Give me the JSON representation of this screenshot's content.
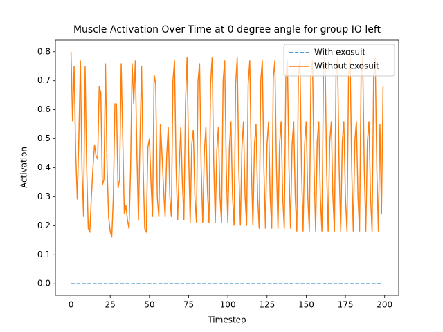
{
  "chart_data": {
    "type": "line",
    "title": "Muscle Activation Over Time at 0 degree angle for group IO left",
    "x_label": "Timestep",
    "y_label": "Activation",
    "x": [
      0,
      1,
      2,
      3,
      4,
      5,
      6,
      7,
      8,
      9,
      10,
      11,
      12,
      13,
      14,
      15,
      16,
      17,
      18,
      19,
      20,
      21,
      22,
      23,
      24,
      25,
      26,
      27,
      28,
      29,
      30,
      31,
      32,
      33,
      34,
      35,
      36,
      37,
      38,
      39,
      40,
      41,
      42,
      43,
      44,
      45,
      46,
      47,
      48,
      49,
      50,
      51,
      52,
      53,
      54,
      55,
      56,
      57,
      58,
      59,
      60,
      61,
      62,
      63,
      64,
      65,
      66,
      67,
      68,
      69,
      70,
      71,
      72,
      73,
      74,
      75,
      76,
      77,
      78,
      79,
      80,
      81,
      82,
      83,
      84,
      85,
      86,
      87,
      88,
      89,
      90,
      91,
      92,
      93,
      94,
      95,
      96,
      97,
      98,
      99,
      100,
      101,
      102,
      103,
      104,
      105,
      106,
      107,
      108,
      109,
      110,
      111,
      112,
      113,
      114,
      115,
      116,
      117,
      118,
      119,
      120,
      121,
      122,
      123,
      124,
      125,
      126,
      127,
      128,
      129,
      130,
      131,
      132,
      133,
      134,
      135,
      136,
      137,
      138,
      139,
      140,
      141,
      142,
      143,
      144,
      145,
      146,
      147,
      148,
      149,
      150,
      151,
      152,
      153,
      154,
      155,
      156,
      157,
      158,
      159,
      160,
      161,
      162,
      163,
      164,
      165,
      166,
      167,
      168,
      169,
      170,
      171,
      172,
      173,
      174,
      175,
      176,
      177,
      178,
      179,
      180,
      181,
      182,
      183,
      184,
      185,
      186,
      187,
      188,
      189,
      190,
      191,
      192,
      193,
      194,
      195,
      196,
      197,
      198,
      199
    ],
    "series": [
      {
        "name": "With exosuit",
        "color": "#1f77b4",
        "linestyle": "dashed",
        "values": [
          0,
          0,
          0,
          0,
          0,
          0,
          0,
          0,
          0,
          0,
          0,
          0,
          0,
          0,
          0,
          0,
          0,
          0,
          0,
          0,
          0,
          0,
          0,
          0,
          0,
          0,
          0,
          0,
          0,
          0,
          0,
          0,
          0,
          0,
          0,
          0,
          0,
          0,
          0,
          0,
          0,
          0,
          0,
          0,
          0,
          0,
          0,
          0,
          0,
          0,
          0,
          0,
          0,
          0,
          0,
          0,
          0,
          0,
          0,
          0,
          0,
          0,
          0,
          0,
          0,
          0,
          0,
          0,
          0,
          0,
          0,
          0,
          0,
          0,
          0,
          0,
          0,
          0,
          0,
          0,
          0,
          0,
          0,
          0,
          0,
          0,
          0,
          0,
          0,
          0,
          0,
          0,
          0,
          0,
          0,
          0,
          0,
          0,
          0,
          0,
          0,
          0,
          0,
          0,
          0,
          0,
          0,
          0,
          0,
          0,
          0,
          0,
          0,
          0,
          0,
          0,
          0,
          0,
          0,
          0,
          0,
          0,
          0,
          0,
          0,
          0,
          0,
          0,
          0,
          0,
          0,
          0,
          0,
          0,
          0,
          0,
          0,
          0,
          0,
          0,
          0,
          0,
          0,
          0,
          0,
          0,
          0,
          0,
          0,
          0,
          0,
          0,
          0,
          0,
          0,
          0,
          0,
          0,
          0,
          0,
          0,
          0,
          0,
          0,
          0,
          0,
          0,
          0,
          0,
          0,
          0,
          0,
          0,
          0,
          0,
          0,
          0,
          0,
          0,
          0,
          0,
          0,
          0,
          0,
          0,
          0,
          0,
          0,
          0,
          0,
          0,
          0,
          0,
          0,
          0,
          0,
          0,
          0,
          0,
          0
        ]
      },
      {
        "name": "Without exosuit",
        "color": "#ff7f0e",
        "linestyle": "solid",
        "values": [
          0.8,
          0.56,
          0.75,
          0.45,
          0.29,
          0.5,
          0.77,
          0.4,
          0.23,
          0.75,
          0.4,
          0.19,
          0.18,
          0.3,
          0.4,
          0.48,
          0.44,
          0.43,
          0.68,
          0.66,
          0.34,
          0.36,
          0.76,
          0.4,
          0.23,
          0.18,
          0.16,
          0.3,
          0.62,
          0.62,
          0.33,
          0.36,
          0.76,
          0.5,
          0.24,
          0.27,
          0.22,
          0.19,
          0.4,
          0.76,
          0.62,
          0.77,
          0.45,
          0.22,
          0.5,
          0.75,
          0.4,
          0.19,
          0.18,
          0.47,
          0.5,
          0.35,
          0.23,
          0.72,
          0.69,
          0.3,
          0.23,
          0.55,
          0.45,
          0.33,
          0.23,
          0.44,
          0.54,
          0.3,
          0.23,
          0.7,
          0.77,
          0.4,
          0.22,
          0.4,
          0.54,
          0.35,
          0.22,
          0.62,
          0.78,
          0.45,
          0.21,
          0.48,
          0.53,
          0.3,
          0.21,
          0.7,
          0.76,
          0.4,
          0.21,
          0.45,
          0.54,
          0.32,
          0.21,
          0.69,
          0.78,
          0.42,
          0.21,
          0.46,
          0.54,
          0.3,
          0.21,
          0.7,
          0.77,
          0.4,
          0.21,
          0.47,
          0.56,
          0.3,
          0.2,
          0.69,
          0.78,
          0.4,
          0.2,
          0.47,
          0.56,
          0.3,
          0.2,
          0.69,
          0.77,
          0.4,
          0.2,
          0.48,
          0.55,
          0.3,
          0.19,
          0.7,
          0.77,
          0.4,
          0.19,
          0.48,
          0.56,
          0.3,
          0.19,
          0.71,
          0.77,
          0.4,
          0.19,
          0.48,
          0.56,
          0.3,
          0.19,
          0.71,
          0.77,
          0.4,
          0.19,
          0.48,
          0.56,
          0.3,
          0.18,
          0.71,
          0.77,
          0.4,
          0.18,
          0.48,
          0.56,
          0.3,
          0.18,
          0.72,
          0.77,
          0.4,
          0.18,
          0.49,
          0.56,
          0.3,
          0.18,
          0.72,
          0.78,
          0.4,
          0.18,
          0.49,
          0.56,
          0.3,
          0.18,
          0.72,
          0.78,
          0.4,
          0.18,
          0.49,
          0.56,
          0.3,
          0.18,
          0.72,
          0.78,
          0.4,
          0.18,
          0.49,
          0.56,
          0.3,
          0.18,
          0.72,
          0.78,
          0.4,
          0.18,
          0.49,
          0.56,
          0.3,
          0.18,
          0.72,
          0.78,
          0.4,
          0.18,
          0.55,
          0.24,
          0.68
        ]
      }
    ],
    "xlim": [
      -9.95,
      208.95
    ],
    "ylim": [
      -0.04,
      0.84
    ],
    "xticks": [
      0,
      25,
      50,
      75,
      100,
      125,
      150,
      175,
      200
    ],
    "yticks": [
      {
        "value": 0,
        "label": "0.0"
      },
      0.1,
      0.2,
      0.3,
      0.4,
      0.5,
      0.6,
      0.7,
      0.8
    ],
    "legend": "upper right"
  }
}
